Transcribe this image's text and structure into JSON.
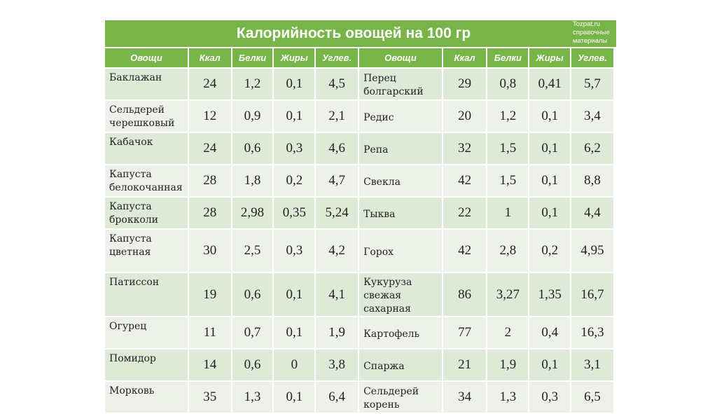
{
  "title": "Калорийность овощей на 100 гр",
  "source_note": "Tozpat.ru\nсправочные\nматериалы",
  "headers": [
    "Овощи",
    "Ккал",
    "Белки",
    "Жиры",
    "Углев.",
    "Овощи",
    "Ккал",
    "Белки",
    "Жиры",
    "Углев."
  ],
  "colors": {
    "header_green": "#77b548",
    "row_a": "#dfe9d7",
    "row_b": "#edf1ea"
  },
  "rows": [
    {
      "left": [
        "Баклажан",
        "24",
        "1,2",
        "0,1",
        "4,5"
      ],
      "right": [
        "Перец болгарский",
        "29",
        "0,8",
        "0,41",
        "5,7"
      ]
    },
    {
      "left": [
        "Сельдерей черешковый",
        "12",
        "0,9",
        "0,1",
        "2,1"
      ],
      "right": [
        "Редис",
        "20",
        "1,2",
        "0,1",
        "3,4"
      ]
    },
    {
      "left": [
        "Кабачок",
        "24",
        "0,6",
        "0,3",
        "4,6"
      ],
      "right": [
        "Репа",
        "32",
        "1,5",
        "0,1",
        "6,2"
      ]
    },
    {
      "left": [
        "Капуста белокочанная",
        "28",
        "1,8",
        "0,2",
        "4,7"
      ],
      "right": [
        "Свекла",
        "42",
        "1,5",
        "0,1",
        "8,8"
      ]
    },
    {
      "left": [
        "Капуста брокколи",
        "28",
        "2,98",
        "0,35",
        "5,24"
      ],
      "right": [
        "Тыква",
        "22",
        "1",
        "0,1",
        "4,4"
      ]
    },
    {
      "left": [
        "Капуста цветная",
        "30",
        "2,5",
        "0,3",
        "4,2"
      ],
      "right": [
        "Горох",
        "42",
        "2,8",
        "0,2",
        "4,95"
      ]
    },
    {
      "left": [
        "Патиссон",
        "19",
        "0,6",
        "0,1",
        "4,1"
      ],
      "right": [
        "Кукуруза свежая сахарная",
        "86",
        "3,27",
        "1,35",
        "16,7"
      ]
    },
    {
      "left": [
        "Огурец",
        "11",
        "0,7",
        "0,1",
        "1,9"
      ],
      "right": [
        "Картофель",
        "77",
        "2",
        "0,4",
        "16,3"
      ]
    },
    {
      "left": [
        "Помидор",
        "14",
        "0,6",
        "0",
        "3,8"
      ],
      "right": [
        "Спаржа",
        "21",
        "1,9",
        "0,1",
        "3,1"
      ]
    },
    {
      "left": [
        "Морковь",
        "35",
        "1,3",
        "0,1",
        "6,4"
      ],
      "right": [
        "Сельдерей корень",
        "34",
        "1,3",
        "0,3",
        "6,5"
      ]
    }
  ]
}
